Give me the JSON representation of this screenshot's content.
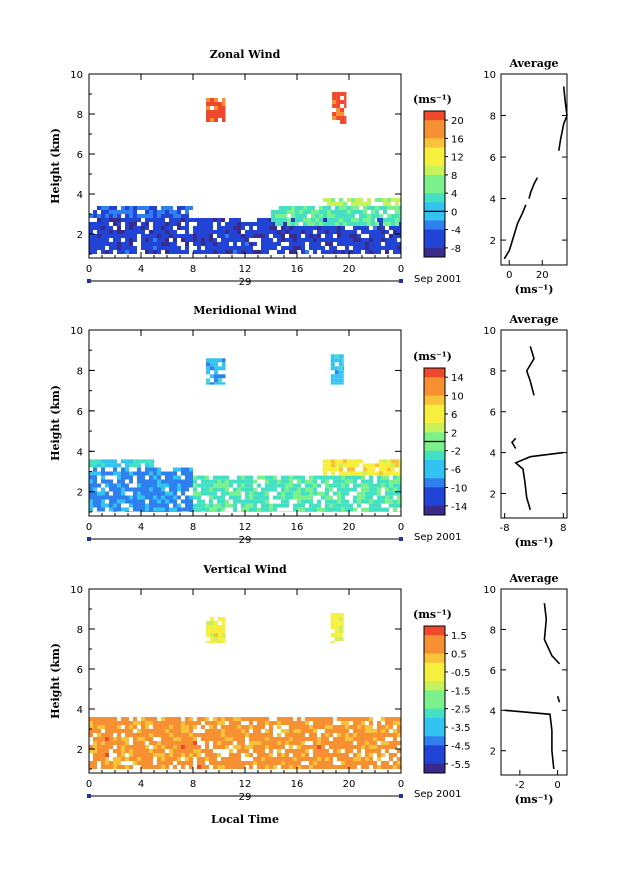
{
  "figure": {
    "xlabel": "Local Time",
    "date_label": "Sep 2001",
    "day_label": "29",
    "avg_title": "Average",
    "unit": "(ms⁻¹)"
  },
  "chart_data": [
    {
      "type": "heatmap",
      "title": "Zonal Wind",
      "xlabel": "Local Time",
      "ylabel": "Height (km)",
      "x_ticks": [
        "0",
        "4",
        "8",
        "12",
        "16",
        "20",
        "0"
      ],
      "xlim": [
        0,
        24
      ],
      "y_ticks": [
        "2",
        "4",
        "6",
        "8",
        "10"
      ],
      "ylim": [
        0.8,
        10
      ],
      "colorbar": {
        "unit": "(ms⁻¹)",
        "ticks": [
          "20",
          "16",
          "12",
          "8",
          "4",
          "0",
          "-4",
          "-8"
        ],
        "range": [
          -10,
          22
        ],
        "contour_level": 0
      },
      "regions": [
        {
          "t0": 0,
          "t1": 24,
          "z0": 1.0,
          "z1": 2.8,
          "value": -6
        },
        {
          "t0": 0,
          "t1": 8,
          "z0": 2.8,
          "z1": 3.4,
          "value": -4
        },
        {
          "t0": 14,
          "t1": 24,
          "z0": 2.4,
          "z1": 3.4,
          "value": 4
        },
        {
          "t0": 18,
          "t1": 24,
          "z0": 3.4,
          "z1": 3.8,
          "value": 8
        },
        {
          "t0": 9,
          "t1": 10.5,
          "z0": 7.6,
          "z1": 8.8,
          "value": 20
        },
        {
          "t0": 18.7,
          "t1": 19.8,
          "z0": 7.5,
          "z1": 9.1,
          "value": 20
        }
      ],
      "average_profile": {
        "xlabel": "(ms⁻¹)",
        "x_ticks": [
          "0",
          "20"
        ],
        "xlim": [
          -5,
          35
        ],
        "segments": [
          [
            [
              -3,
              1.1
            ],
            [
              0,
              1.5
            ],
            [
              2,
              2.0
            ],
            [
              5,
              2.8
            ],
            [
              8,
              3.3
            ],
            [
              10,
              3.7
            ]
          ],
          [
            [
              12,
              4.0
            ],
            [
              13,
              4.3
            ],
            [
              15,
              4.7
            ],
            [
              17,
              5.0
            ]
          ],
          [
            [
              30,
              6.3
            ],
            [
              31,
              6.8
            ],
            [
              33,
              7.6
            ],
            [
              35,
              8.0
            ],
            [
              34,
              8.6
            ],
            [
              33,
              9.4
            ]
          ]
        ]
      }
    },
    {
      "type": "heatmap",
      "title": "Meridional Wind",
      "xlabel": "Local Time",
      "ylabel": "Height (km)",
      "x_ticks": [
        "0",
        "4",
        "8",
        "12",
        "16",
        "20",
        "0"
      ],
      "xlim": [
        0,
        24
      ],
      "y_ticks": [
        "2",
        "4",
        "6",
        "8",
        "10"
      ],
      "ylim": [
        0.8,
        10
      ],
      "colorbar": {
        "unit": "(ms⁻¹)",
        "ticks": [
          "14",
          "10",
          "6",
          "2",
          "-2",
          "-6",
          "-10",
          "-14"
        ],
        "range": [
          -16,
          16
        ],
        "contour_level": 0
      },
      "regions": [
        {
          "t0": 0,
          "t1": 8,
          "z0": 1.0,
          "z1": 3.2,
          "value": -8
        },
        {
          "t0": 8,
          "t1": 24,
          "z0": 1.0,
          "z1": 2.8,
          "value": -2
        },
        {
          "t0": 18,
          "t1": 24,
          "z0": 2.8,
          "z1": 3.6,
          "value": 6
        },
        {
          "t0": 0,
          "t1": 5,
          "z0": 3.2,
          "z1": 3.6,
          "value": -4
        },
        {
          "t0": 9,
          "t1": 10.5,
          "z0": 7.3,
          "z1": 8.6,
          "value": -6
        },
        {
          "t0": 18.6,
          "t1": 19.6,
          "z0": 7.3,
          "z1": 8.8,
          "value": -6
        }
      ],
      "average_profile": {
        "xlabel": "(ms⁻¹)",
        "x_ticks": [
          "-8",
          "8"
        ],
        "xlim": [
          -9,
          9
        ],
        "segments": [
          [
            [
              -1,
              1.2
            ],
            [
              -2,
              1.8
            ],
            [
              -2.5,
              2.6
            ],
            [
              -3,
              3.2
            ],
            [
              -5,
              3.5
            ],
            [
              -1,
              3.8
            ],
            [
              8,
              4.0
            ]
          ],
          [
            [
              -5,
              4.2
            ],
            [
              -6,
              4.5
            ],
            [
              -5,
              4.7
            ]
          ],
          [
            [
              0,
              6.8
            ],
            [
              -1,
              7.5
            ],
            [
              -2,
              8.0
            ],
            [
              0,
              8.6
            ],
            [
              -1,
              9.2
            ]
          ]
        ]
      }
    },
    {
      "type": "heatmap",
      "title": "Vertical Wind",
      "xlabel": "Local Time",
      "ylabel": "Height (km)",
      "x_ticks": [
        "0",
        "4",
        "8",
        "12",
        "16",
        "20",
        "0"
      ],
      "xlim": [
        0,
        24
      ],
      "y_ticks": [
        "2",
        "4",
        "6",
        "8",
        "10"
      ],
      "ylim": [
        0.8,
        10
      ],
      "colorbar": {
        "unit": "(ms⁻¹)",
        "ticks": [
          "1.5",
          "0.5",
          "-0.5",
          "-1.5",
          "-2.5",
          "-3.5",
          "-4.5",
          "-5.5"
        ],
        "range": [
          -6,
          2
        ],
        "contour_level": null
      },
      "regions": [
        {
          "t0": 0,
          "t1": 24,
          "z0": 1.0,
          "z1": 3.6,
          "value": 0.8
        },
        {
          "t0": 9,
          "t1": 10.5,
          "z0": 7.3,
          "z1": 8.6,
          "value": -0.6
        },
        {
          "t0": 18.6,
          "t1": 19.6,
          "z0": 7.3,
          "z1": 8.8,
          "value": -0.6
        }
      ],
      "average_profile": {
        "xlabel": "(ms⁻¹)",
        "x_ticks": [
          "-2",
          "0"
        ],
        "xlim": [
          -3,
          0.5
        ],
        "segments": [
          [
            [
              -0.2,
              1.1
            ],
            [
              -0.3,
              2.0
            ],
            [
              -0.3,
              3.0
            ],
            [
              -0.4,
              3.8
            ],
            [
              -2.8,
              4.0
            ]
          ],
          [
            [
              0.1,
              4.4
            ],
            [
              0.0,
              4.7
            ]
          ],
          [
            [
              0.1,
              6.3
            ],
            [
              -0.3,
              6.7
            ],
            [
              -0.7,
              7.5
            ],
            [
              -0.6,
              8.5
            ],
            [
              -0.7,
              9.3
            ]
          ]
        ]
      }
    }
  ]
}
